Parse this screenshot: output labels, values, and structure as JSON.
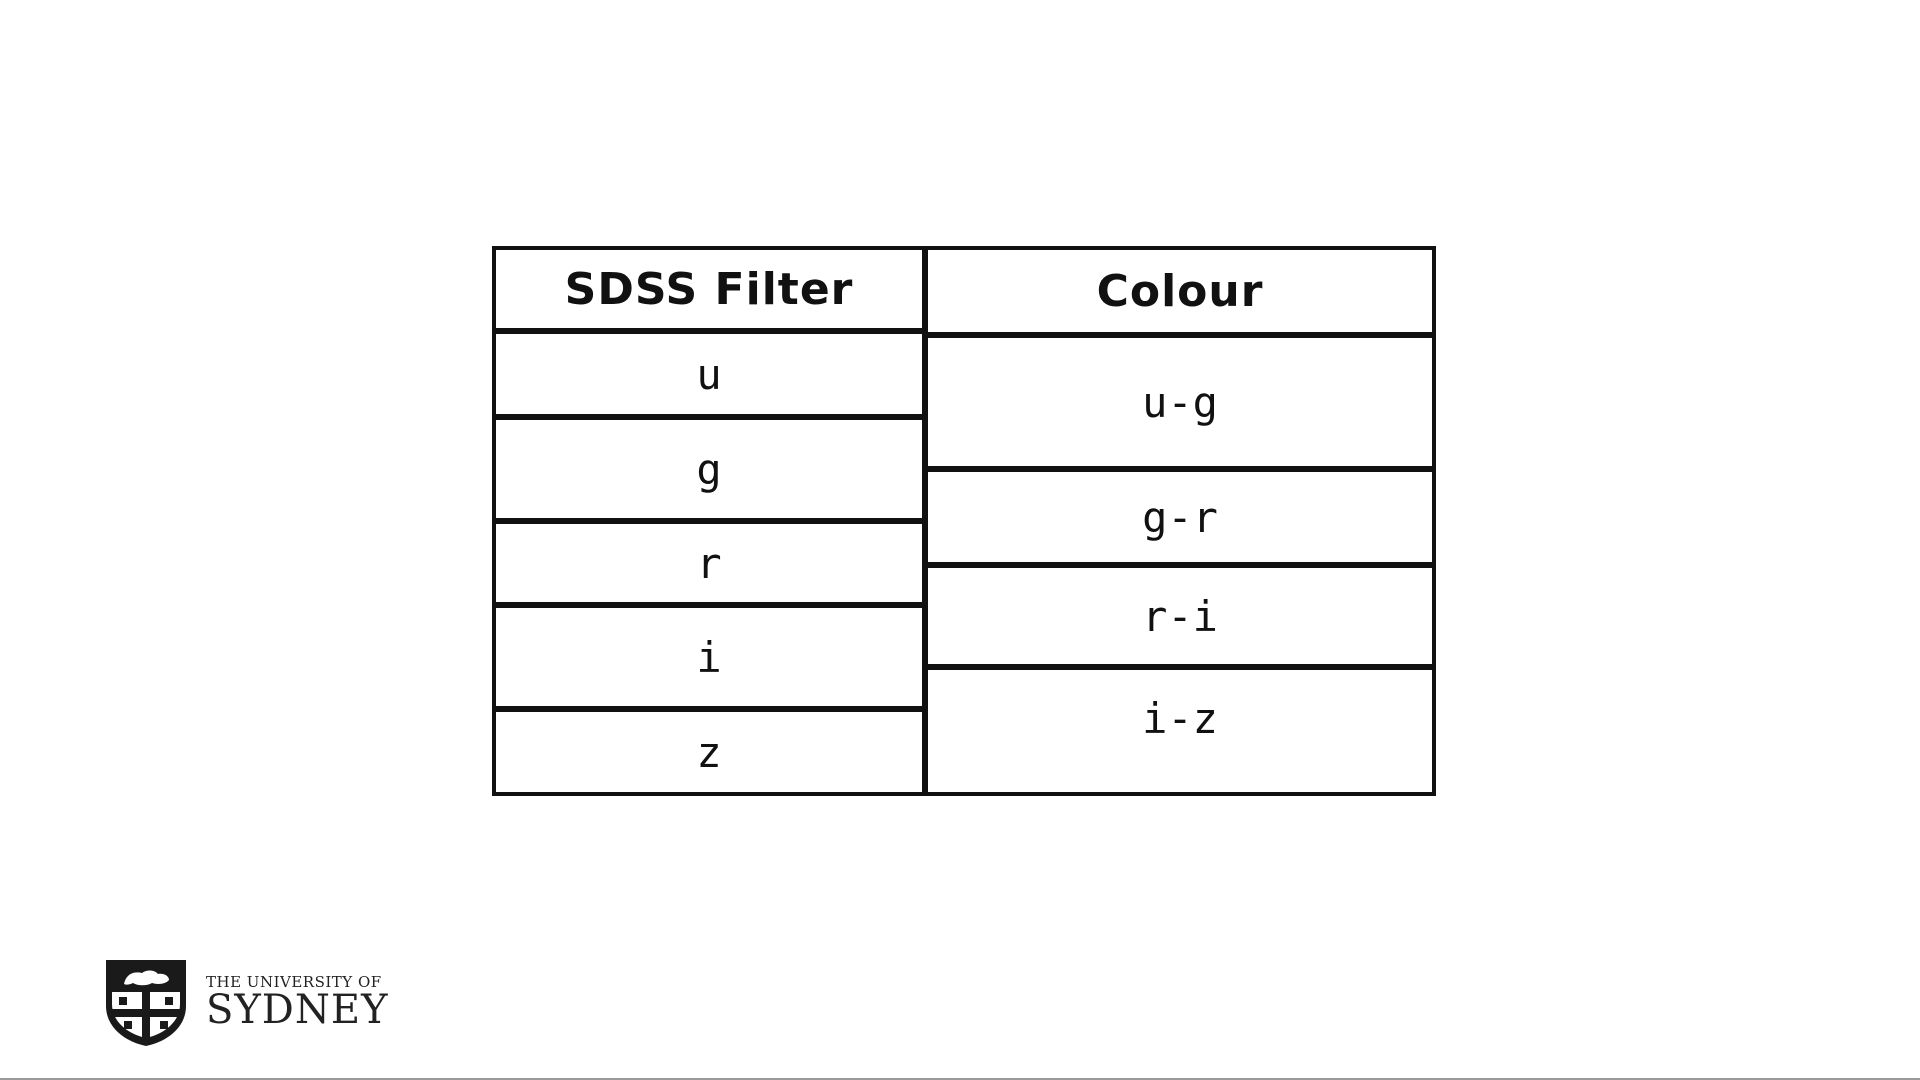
{
  "table": {
    "headers": [
      "SDSS Filter",
      "Colour"
    ],
    "filters": [
      "u",
      "g",
      "r",
      "i",
      "z"
    ],
    "colours": [
      "u-g",
      "g-r",
      "r-i",
      "i-z"
    ]
  },
  "logo": {
    "line1": "THE UNIVERSITY OF",
    "line2": "SYDNEY"
  }
}
